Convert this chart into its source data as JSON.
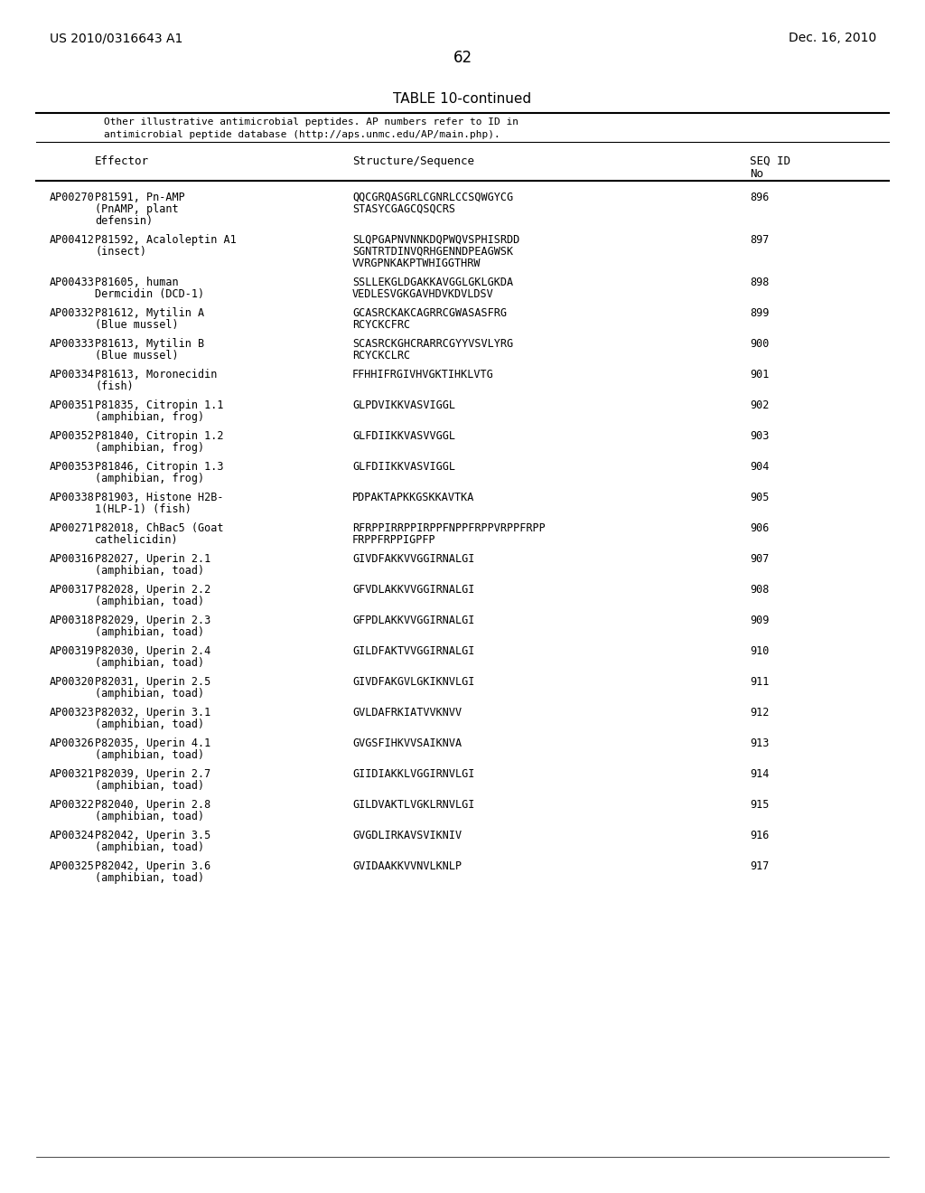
{
  "patent_left": "US 2010/0316643 A1",
  "patent_right": "Dec. 16, 2010",
  "page_number": "62",
  "table_title": "TABLE 10-continued",
  "caption_line1": "Other illustrative antimicrobial peptides. AP numbers refer to ID in",
  "caption_line2": "antimicrobial peptide database (http://aps.unmc.edu/AP/main.php).",
  "col_headers": [
    "Effector",
    "Structure/Sequence",
    "SEQ ID\nNo"
  ],
  "rows": [
    [
      "AP00270",
      "P81591, Pn-AMP\n(PnAMP, plant\ndefensin)",
      "QQCGRQASGRLCGNRLCCSQWGYCG\nSTASYCGAGCQSQCRS",
      "896"
    ],
    [
      "AP00412",
      "P81592, Acaloleptin A1\n(insect)",
      "SLQPGAPNVNNKDQPWQVSPHISRDD\nSGNTRTDINVQRHGENNDPEAGWSK\nVVRGPNKAKPTWHIGGTHRW",
      "897"
    ],
    [
      "AP00433",
      "P81605, human\nDermcidin (DCD-1)",
      "SSLLEKGLDGAKKAVGGLGKLGKDA\nVEDLESVGKGAVHDVKDVLDSV",
      "898"
    ],
    [
      "AP00332",
      "P81612, Mytilin A\n(Blue mussel)",
      "GCASRCKAKCAGRRCGWASASFRG\nRCYCKCFRC",
      "899"
    ],
    [
      "AP00333",
      "P81613, Mytilin B\n(Blue mussel)",
      "SCASRCKGHCRARRCGYYVSVLYRG\nRCYCKCLRC",
      "900"
    ],
    [
      "AP00334",
      "P81613, Moronecidin\n(fish)",
      "FFHHIFRGIVHVGKTIHKLVTG",
      "901"
    ],
    [
      "AP00351",
      "P81835, Citropin 1.1\n(amphibian, frog)",
      "GLPDVIKKVASVIGGL",
      "902"
    ],
    [
      "AP00352",
      "P81840, Citropin 1.2\n(amphibian, frog)",
      "GLFDIIKKVASVVGGL",
      "903"
    ],
    [
      "AP00353",
      "P81846, Citropin 1.3\n(amphibian, frog)",
      "GLFDIIKKVASVIGGL",
      "904"
    ],
    [
      "AP00338",
      "P81903, Histone H2B-\n1(HLP-1) (fish)",
      "PDPAKTAPKKGSKKAVTKA",
      "905"
    ],
    [
      "AP00271",
      "P82018, ChBac5 (Goat\ncathelicidin)",
      "RFRPPIRRPPIRPPFNPPFRPPVRPPFRPP\nFRPPFRPPIGPFP",
      "906"
    ],
    [
      "AP00316",
      "P82027, Uperin 2.1\n(amphibian, toad)",
      "GIVDFAKKVVGGIRNALGI",
      "907"
    ],
    [
      "AP00317",
      "P82028, Uperin 2.2\n(amphibian, toad)",
      "GFVDLAKKVVGGIRNALGI",
      "908"
    ],
    [
      "AP00318",
      "P82029, Uperin 2.3\n(amphibian, toad)",
      "GFPDLAKKVVGGIRNALGI",
      "909"
    ],
    [
      "AP00319",
      "P82030, Uperin 2.4\n(amphibian, toad)",
      "GILDFAKTVVGGIRNALGI",
      "910"
    ],
    [
      "AP00320",
      "P82031, Uperin 2.5\n(amphibian, toad)",
      "GIVDFAKGVLGKIKNVLGI",
      "911"
    ],
    [
      "AP00323",
      "P82032, Uperin 3.1\n(amphibian, toad)",
      "GVLDAFRKIATVVKNVV",
      "912"
    ],
    [
      "AP00326",
      "P82035, Uperin 4.1\n(amphibian, toad)",
      "GVGSFIHKVVSAIKNVA",
      "913"
    ],
    [
      "AP00321",
      "P82039, Uperin 2.7\n(amphibian, toad)",
      "GIIDIAKKLVGGIRNVLGI",
      "914"
    ],
    [
      "AP00322",
      "P82040, Uperin 2.8\n(amphibian, toad)",
      "GILDVAKTLVGKLRNVLGI",
      "915"
    ],
    [
      "AP00324",
      "P82042, Uperin 3.5\n(amphibian, toad)",
      "GVGDLIRKAVSVIKNIV",
      "916"
    ],
    [
      "AP00325",
      "P82042, Uperin 3.6\n(amphibian, toad)",
      "GVIDAAKKVVNVLKNLP",
      "917"
    ]
  ],
  "bg_color": "#ffffff",
  "text_color": "#000000",
  "font_size_header": 9,
  "font_size_body": 8.5,
  "font_size_patent": 10,
  "font_size_title": 11,
  "font_size_page": 12
}
